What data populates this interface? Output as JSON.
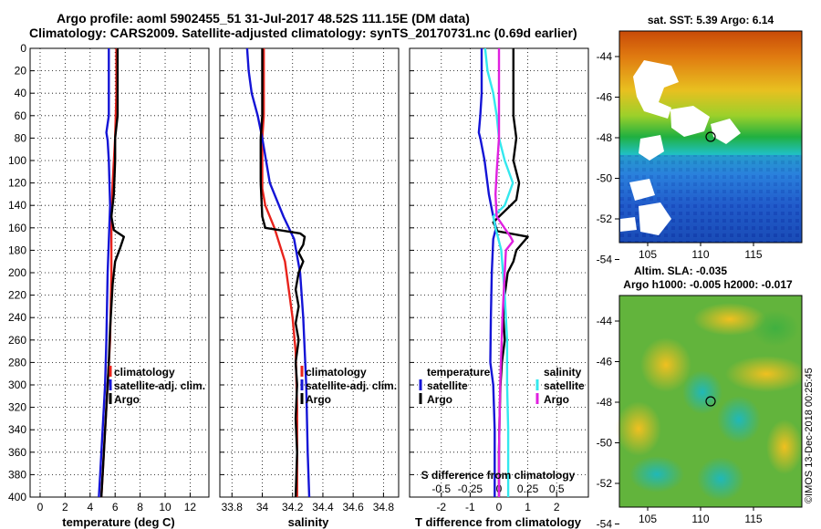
{
  "header": {
    "line1": "Argo profile: aoml 5902455_51 31-Jul-2017 48.52S 111.15E (DM data)",
    "line2": "Climatology: CARS2009. Satellite-adjusted climatology: synTS_20170731.nc (0.69d earlier)"
  },
  "sst_map": {
    "title": "sat. SST: 5.39 Argo: 6.14",
    "lat_ticks": [
      "-44",
      "-46",
      "-48",
      "-50",
      "-52",
      "-54"
    ],
    "lon_ticks": [
      "105",
      "110",
      "115"
    ]
  },
  "sla_map": {
    "title1": "Altim. SLA: -0.035",
    "title2": "Argo h1000: -0.005 h2000: -0.017",
    "lat_ticks": [
      "-44",
      "-46",
      "-48",
      "-50",
      "-52",
      "-54"
    ],
    "lon_ticks": [
      "105",
      "110",
      "115"
    ]
  },
  "credit": "©IMOS 13-Dec-2018 00:25:45",
  "colors": {
    "climatology": "#e8231c",
    "satellite": "#1414d6",
    "argo": "#000000",
    "sal_sat": "#33e8ee",
    "sal_argo": "#e020e0"
  },
  "chart_data": [
    {
      "type": "line",
      "xlabel": "temperature (deg C)",
      "xlim": [
        -0.8,
        13.5
      ],
      "xticks": [
        0,
        2,
        4,
        6,
        8,
        10,
        12
      ],
      "ylim": [
        0,
        400
      ],
      "yticks": [
        0,
        20,
        40,
        60,
        80,
        100,
        120,
        140,
        160,
        180,
        200,
        220,
        240,
        260,
        280,
        300,
        320,
        340,
        360,
        380,
        400
      ],
      "legend": [
        "climatology",
        "satellite-adj. clim.",
        "Argo"
      ],
      "series": [
        {
          "name": "climatology",
          "color": "#e8231c",
          "points": [
            [
              6.1,
              0
            ],
            [
              6.1,
              40
            ],
            [
              6.0,
              80
            ],
            [
              5.8,
              120
            ],
            [
              5.7,
              150
            ],
            [
              5.7,
              200
            ],
            [
              5.6,
              260
            ],
            [
              5.4,
              300
            ],
            [
              5.2,
              340
            ],
            [
              5.0,
              380
            ],
            [
              4.9,
              400
            ]
          ]
        },
        {
          "name": "satellite-adj. clim.",
          "color": "#1414d6",
          "points": [
            [
              5.5,
              0
            ],
            [
              5.5,
              40
            ],
            [
              5.5,
              60
            ],
            [
              5.3,
              75
            ],
            [
              5.4,
              82
            ],
            [
              5.5,
              100
            ],
            [
              5.6,
              140
            ],
            [
              5.4,
              200
            ],
            [
              5.3,
              260
            ],
            [
              5.2,
              300
            ],
            [
              5.0,
              340
            ],
            [
              4.8,
              380
            ],
            [
              4.7,
              400
            ]
          ]
        },
        {
          "name": "Argo",
          "color": "#000000",
          "points": [
            [
              6.2,
              0
            ],
            [
              6.2,
              60
            ],
            [
              6.0,
              80
            ],
            [
              6.0,
              100
            ],
            [
              5.9,
              130
            ],
            [
              5.7,
              150
            ],
            [
              5.9,
              162
            ],
            [
              6.7,
              168
            ],
            [
              6.4,
              178
            ],
            [
              6.0,
              190
            ],
            [
              5.8,
              210
            ],
            [
              5.6,
              250
            ],
            [
              5.5,
              280
            ],
            [
              5.3,
              320
            ],
            [
              5.1,
              360
            ],
            [
              4.9,
              400
            ]
          ]
        }
      ]
    },
    {
      "type": "line",
      "xlabel": "salinity",
      "xlim": [
        33.72,
        34.9
      ],
      "xticks": [
        33.8,
        34,
        34.2,
        34.4,
        34.6,
        34.8
      ],
      "xtick_labels": [
        "33.8",
        "34",
        "34.2",
        "34.4",
        "34.6",
        "34.8"
      ],
      "ylim": [
        0,
        400
      ],
      "legend": [
        "climatology",
        "satellite-adj. clim.",
        "Argo"
      ],
      "series": [
        {
          "name": "climatology",
          "color": "#e8231c",
          "points": [
            [
              34.01,
              0
            ],
            [
              34.01,
              60
            ],
            [
              34.0,
              80
            ],
            [
              34.0,
              110
            ],
            [
              34.0,
              125
            ],
            [
              34.02,
              140
            ],
            [
              34.08,
              160
            ],
            [
              34.15,
              190
            ],
            [
              34.2,
              240
            ],
            [
              34.22,
              270
            ],
            [
              34.23,
              320
            ],
            [
              34.23,
              400
            ]
          ]
        },
        {
          "name": "satellite-adj. clim.",
          "color": "#1414d6",
          "points": [
            [
              33.9,
              0
            ],
            [
              33.91,
              20
            ],
            [
              33.93,
              40
            ],
            [
              33.97,
              60
            ],
            [
              34.0,
              80
            ],
            [
              34.05,
              120
            ],
            [
              34.14,
              150
            ],
            [
              34.21,
              170
            ],
            [
              34.25,
              200
            ],
            [
              34.27,
              240
            ],
            [
              34.29,
              300
            ],
            [
              34.3,
              360
            ],
            [
              34.31,
              400
            ]
          ]
        },
        {
          "name": "Argo",
          "color": "#000000",
          "points": [
            [
              34.0,
              0
            ],
            [
              34.0,
              60
            ],
            [
              33.99,
              80
            ],
            [
              33.99,
              120
            ],
            [
              34.0,
              150
            ],
            [
              34.02,
              160
            ],
            [
              34.25,
              165
            ],
            [
              34.28,
              168
            ],
            [
              34.27,
              175
            ],
            [
              34.24,
              182
            ],
            [
              34.27,
              190
            ],
            [
              34.24,
              200
            ],
            [
              34.22,
              215
            ],
            [
              34.24,
              230
            ],
            [
              34.22,
              245
            ],
            [
              34.24,
              260
            ],
            [
              34.22,
              280
            ],
            [
              34.23,
              300
            ],
            [
              34.22,
              330
            ],
            [
              34.23,
              360
            ],
            [
              34.22,
              400
            ]
          ]
        }
      ]
    },
    {
      "type": "line",
      "xlabel": "T difference from climatology",
      "xlim": [
        -3.1,
        3.1
      ],
      "xticks": [
        -2,
        -1,
        0,
        1,
        2
      ],
      "xlabel2": "S difference from climatology",
      "xticks2": [
        "-0.5",
        "-0.25",
        "0",
        "0.25",
        "0.5"
      ],
      "ylim": [
        0,
        400
      ],
      "legend_temperature_title": "temperature",
      "legend_salinity_title": "salinity",
      "legend_temperature": [
        "satellite",
        "Argo"
      ],
      "legend_salinity": [
        "satellite",
        "Argo"
      ],
      "series": [
        {
          "name": "T satellite",
          "color": "#1414d6",
          "points": [
            [
              -0.6,
              0
            ],
            [
              -0.6,
              40
            ],
            [
              -0.65,
              60
            ],
            [
              -0.7,
              75
            ],
            [
              -0.65,
              80
            ],
            [
              -0.5,
              100
            ],
            [
              -0.35,
              130
            ],
            [
              -0.2,
              150
            ],
            [
              -0.1,
              160
            ],
            [
              -0.2,
              170
            ],
            [
              -0.25,
              200
            ],
            [
              -0.28,
              240
            ],
            [
              -0.3,
              280
            ],
            [
              -0.2,
              300
            ],
            [
              -0.15,
              340
            ],
            [
              -0.15,
              400
            ]
          ]
        },
        {
          "name": "T Argo",
          "color": "#000000",
          "points": [
            [
              0.5,
              0
            ],
            [
              0.5,
              40
            ],
            [
              0.5,
              60
            ],
            [
              0.6,
              80
            ],
            [
              0.5,
              100
            ],
            [
              0.7,
              120
            ],
            [
              0.6,
              135
            ],
            [
              -0.2,
              155
            ],
            [
              -0.05,
              163
            ],
            [
              1.0,
              168
            ],
            [
              0.6,
              180
            ],
            [
              0.5,
              190
            ],
            [
              0.3,
              200
            ],
            [
              0.2,
              220
            ],
            [
              0.15,
              240
            ],
            [
              0.2,
              260
            ],
            [
              0.1,
              280
            ],
            [
              0.05,
              300
            ],
            [
              0.02,
              330
            ],
            [
              0.0,
              360
            ],
            [
              0.0,
              400
            ]
          ]
        },
        {
          "name": "S satellite",
          "color": "#33e8ee",
          "points": [
            [
              -0.12,
              0
            ],
            [
              -0.1,
              20
            ],
            [
              -0.05,
              40
            ],
            [
              -0.02,
              60
            ],
            [
              0.0,
              80
            ],
            [
              0.05,
              100
            ],
            [
              0.12,
              120
            ],
            [
              0.05,
              140
            ],
            [
              -0.05,
              150
            ],
            [
              -0.03,
              160
            ],
            [
              0.02,
              180
            ],
            [
              0.05,
              220
            ],
            [
              0.07,
              260
            ],
            [
              0.07,
              300
            ],
            [
              0.08,
              340
            ],
            [
              0.08,
              400
            ]
          ]
        },
        {
          "name": "S Argo",
          "color": "#e020e0",
          "points": [
            [
              0.0,
              0
            ],
            [
              0.0,
              40
            ],
            [
              0.0,
              80
            ],
            [
              -0.02,
              110
            ],
            [
              -0.03,
              130
            ],
            [
              -0.02,
              150
            ],
            [
              0.1,
              168
            ],
            [
              0.12,
              172
            ],
            [
              0.06,
              180
            ],
            [
              0.05,
              200
            ],
            [
              0.03,
              240
            ],
            [
              0.01,
              300
            ],
            [
              0.0,
              360
            ],
            [
              0.0,
              400
            ]
          ]
        }
      ]
    }
  ]
}
